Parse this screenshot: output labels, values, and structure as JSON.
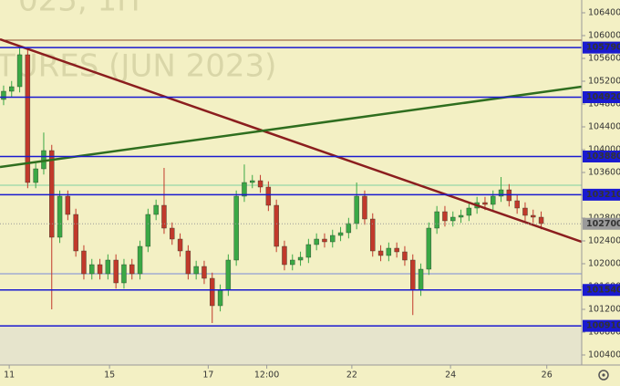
{
  "chart_data": {
    "type": "candlestick",
    "watermark": [
      "025, 1H",
      "TURES (JUN 2023)"
    ],
    "ylim": [
      100224,
      106624
    ],
    "yticks": [
      100400,
      100800,
      101200,
      101600,
      102000,
      102400,
      102800,
      103200,
      103600,
      104000,
      104400,
      104800,
      105200,
      105600,
      106000,
      106400
    ],
    "xlim": [
      -0.45,
      72.05
    ],
    "xticks": [
      {
        "value": 0.7,
        "label": "11"
      },
      {
        "value": 13.2,
        "label": "15"
      },
      {
        "value": 25.5,
        "label": "17"
      },
      {
        "value": 32.8,
        "label": "12:00"
      },
      {
        "value": 43.4,
        "label": "22"
      },
      {
        "value": 55.7,
        "label": "24"
      },
      {
        "value": 67.7,
        "label": "26"
      }
    ],
    "up_color": "#3aa845",
    "down_color": "#c1392b",
    "open": [
      104880,
      105024,
      105104,
      105664,
      103424,
      103664,
      103984,
      102464,
      103184,
      102864,
      102224,
      101824,
      101984,
      101824,
      102064,
      101664,
      101984,
      101824,
      102304,
      102864,
      103024,
      102624,
      102432,
      102224,
      101824,
      101952,
      101744,
      101264,
      101536,
      102064,
      103184,
      103424,
      103456,
      103344,
      103024,
      102304,
      101984,
      102064,
      102112,
      102336,
      102432,
      102384,
      102496,
      102544,
      102704,
      103184,
      102784,
      102224,
      102144,
      102272,
      102208,
      102064,
      101536,
      101904,
      102624,
      102912,
      102752,
      102816,
      102848,
      102976,
      103072,
      103040,
      103184,
      103296,
      103104,
      102976,
      102848,
      102816
    ],
    "high": [
      105124,
      105204,
      105824,
      105764,
      103764,
      104300,
      104084,
      103284,
      103284,
      102964,
      102324,
      102084,
      102084,
      102164,
      102164,
      102084,
      102084,
      102404,
      102964,
      103124,
      103680,
      102724,
      102532,
      102324,
      102052,
      102052,
      101844,
      101636,
      102164,
      103284,
      103740,
      103556,
      103556,
      103444,
      103124,
      102404,
      102164,
      102212,
      102436,
      102532,
      102532,
      102596,
      102644,
      102804,
      103424,
      103284,
      102884,
      102324,
      102372,
      102372,
      102308,
      102164,
      102004,
      102724,
      103012,
      103012,
      102916,
      102948,
      103076,
      103172,
      103172,
      103284,
      103520,
      103396,
      103204,
      103076,
      102948,
      102916
    ],
    "low": [
      104780,
      104924,
      105004,
      103324,
      103324,
      103564,
      101200,
      102364,
      102764,
      102124,
      101724,
      101724,
      101724,
      101724,
      101564,
      101564,
      101724,
      101724,
      102204,
      102764,
      102524,
      102332,
      102124,
      101724,
      101724,
      101644,
      100960,
      101164,
      101436,
      101964,
      103084,
      103324,
      103244,
      102924,
      102204,
      101884,
      101884,
      101964,
      102012,
      102236,
      102284,
      102284,
      102396,
      102444,
      102604,
      102684,
      102124,
      102044,
      102044,
      102108,
      101964,
      101100,
      101436,
      101804,
      102524,
      102652,
      102652,
      102716,
      102748,
      102876,
      102940,
      102940,
      103084,
      103004,
      102876,
      102748,
      102716,
      102604
    ],
    "close": [
      105024,
      105104,
      105664,
      103424,
      103664,
      103984,
      102464,
      103184,
      102864,
      102224,
      101824,
      101984,
      101824,
      102064,
      101664,
      101984,
      101824,
      102304,
      102864,
      103024,
      102624,
      102432,
      102224,
      101824,
      101952,
      101744,
      101264,
      101536,
      102064,
      103184,
      103424,
      103456,
      103344,
      103024,
      102304,
      101984,
      102064,
      102112,
      102336,
      102432,
      102384,
      102496,
      102544,
      102704,
      103184,
      102784,
      102224,
      102144,
      102272,
      102208,
      102064,
      101536,
      101904,
      102624,
      102912,
      102752,
      102816,
      102848,
      102976,
      103072,
      103040,
      103184,
      103296,
      103104,
      102976,
      102848,
      102816,
      102704
    ],
    "levels": [
      {
        "value": 105790,
        "label": "105790",
        "color": "#1a1ad0"
      },
      {
        "value": 104920,
        "label": "104920",
        "color": "#1a1ad0"
      },
      {
        "value": 103880,
        "label": "103880",
        "color": "#1a1ad0"
      },
      {
        "value": 103210,
        "label": "103210",
        "color": "#1a1ad0"
      },
      {
        "value": 102700,
        "label": "102700",
        "color": "#9a9a9a"
      },
      {
        "value": 101540,
        "label": "101540",
        "color": "#1a1ad0"
      },
      {
        "value": 100910,
        "label": "100910",
        "color": "#1a1ad0"
      }
    ],
    "guide_lines": [
      {
        "value": 105920,
        "color": "#8b4a2b"
      },
      {
        "value": 103376,
        "color": "#7fd0a0"
      },
      {
        "value": 101824,
        "color": "#7a8ad8"
      }
    ],
    "trendlines": [
      {
        "color": "#8b1e1e",
        "x": [
          -0.45,
          72.05
        ],
        "y": [
          105936,
          102384
        ]
      },
      {
        "color": "#2f6e1f",
        "x": [
          -0.45,
          72.05
        ],
        "y": [
          103696,
          105104
        ]
      }
    ]
  }
}
